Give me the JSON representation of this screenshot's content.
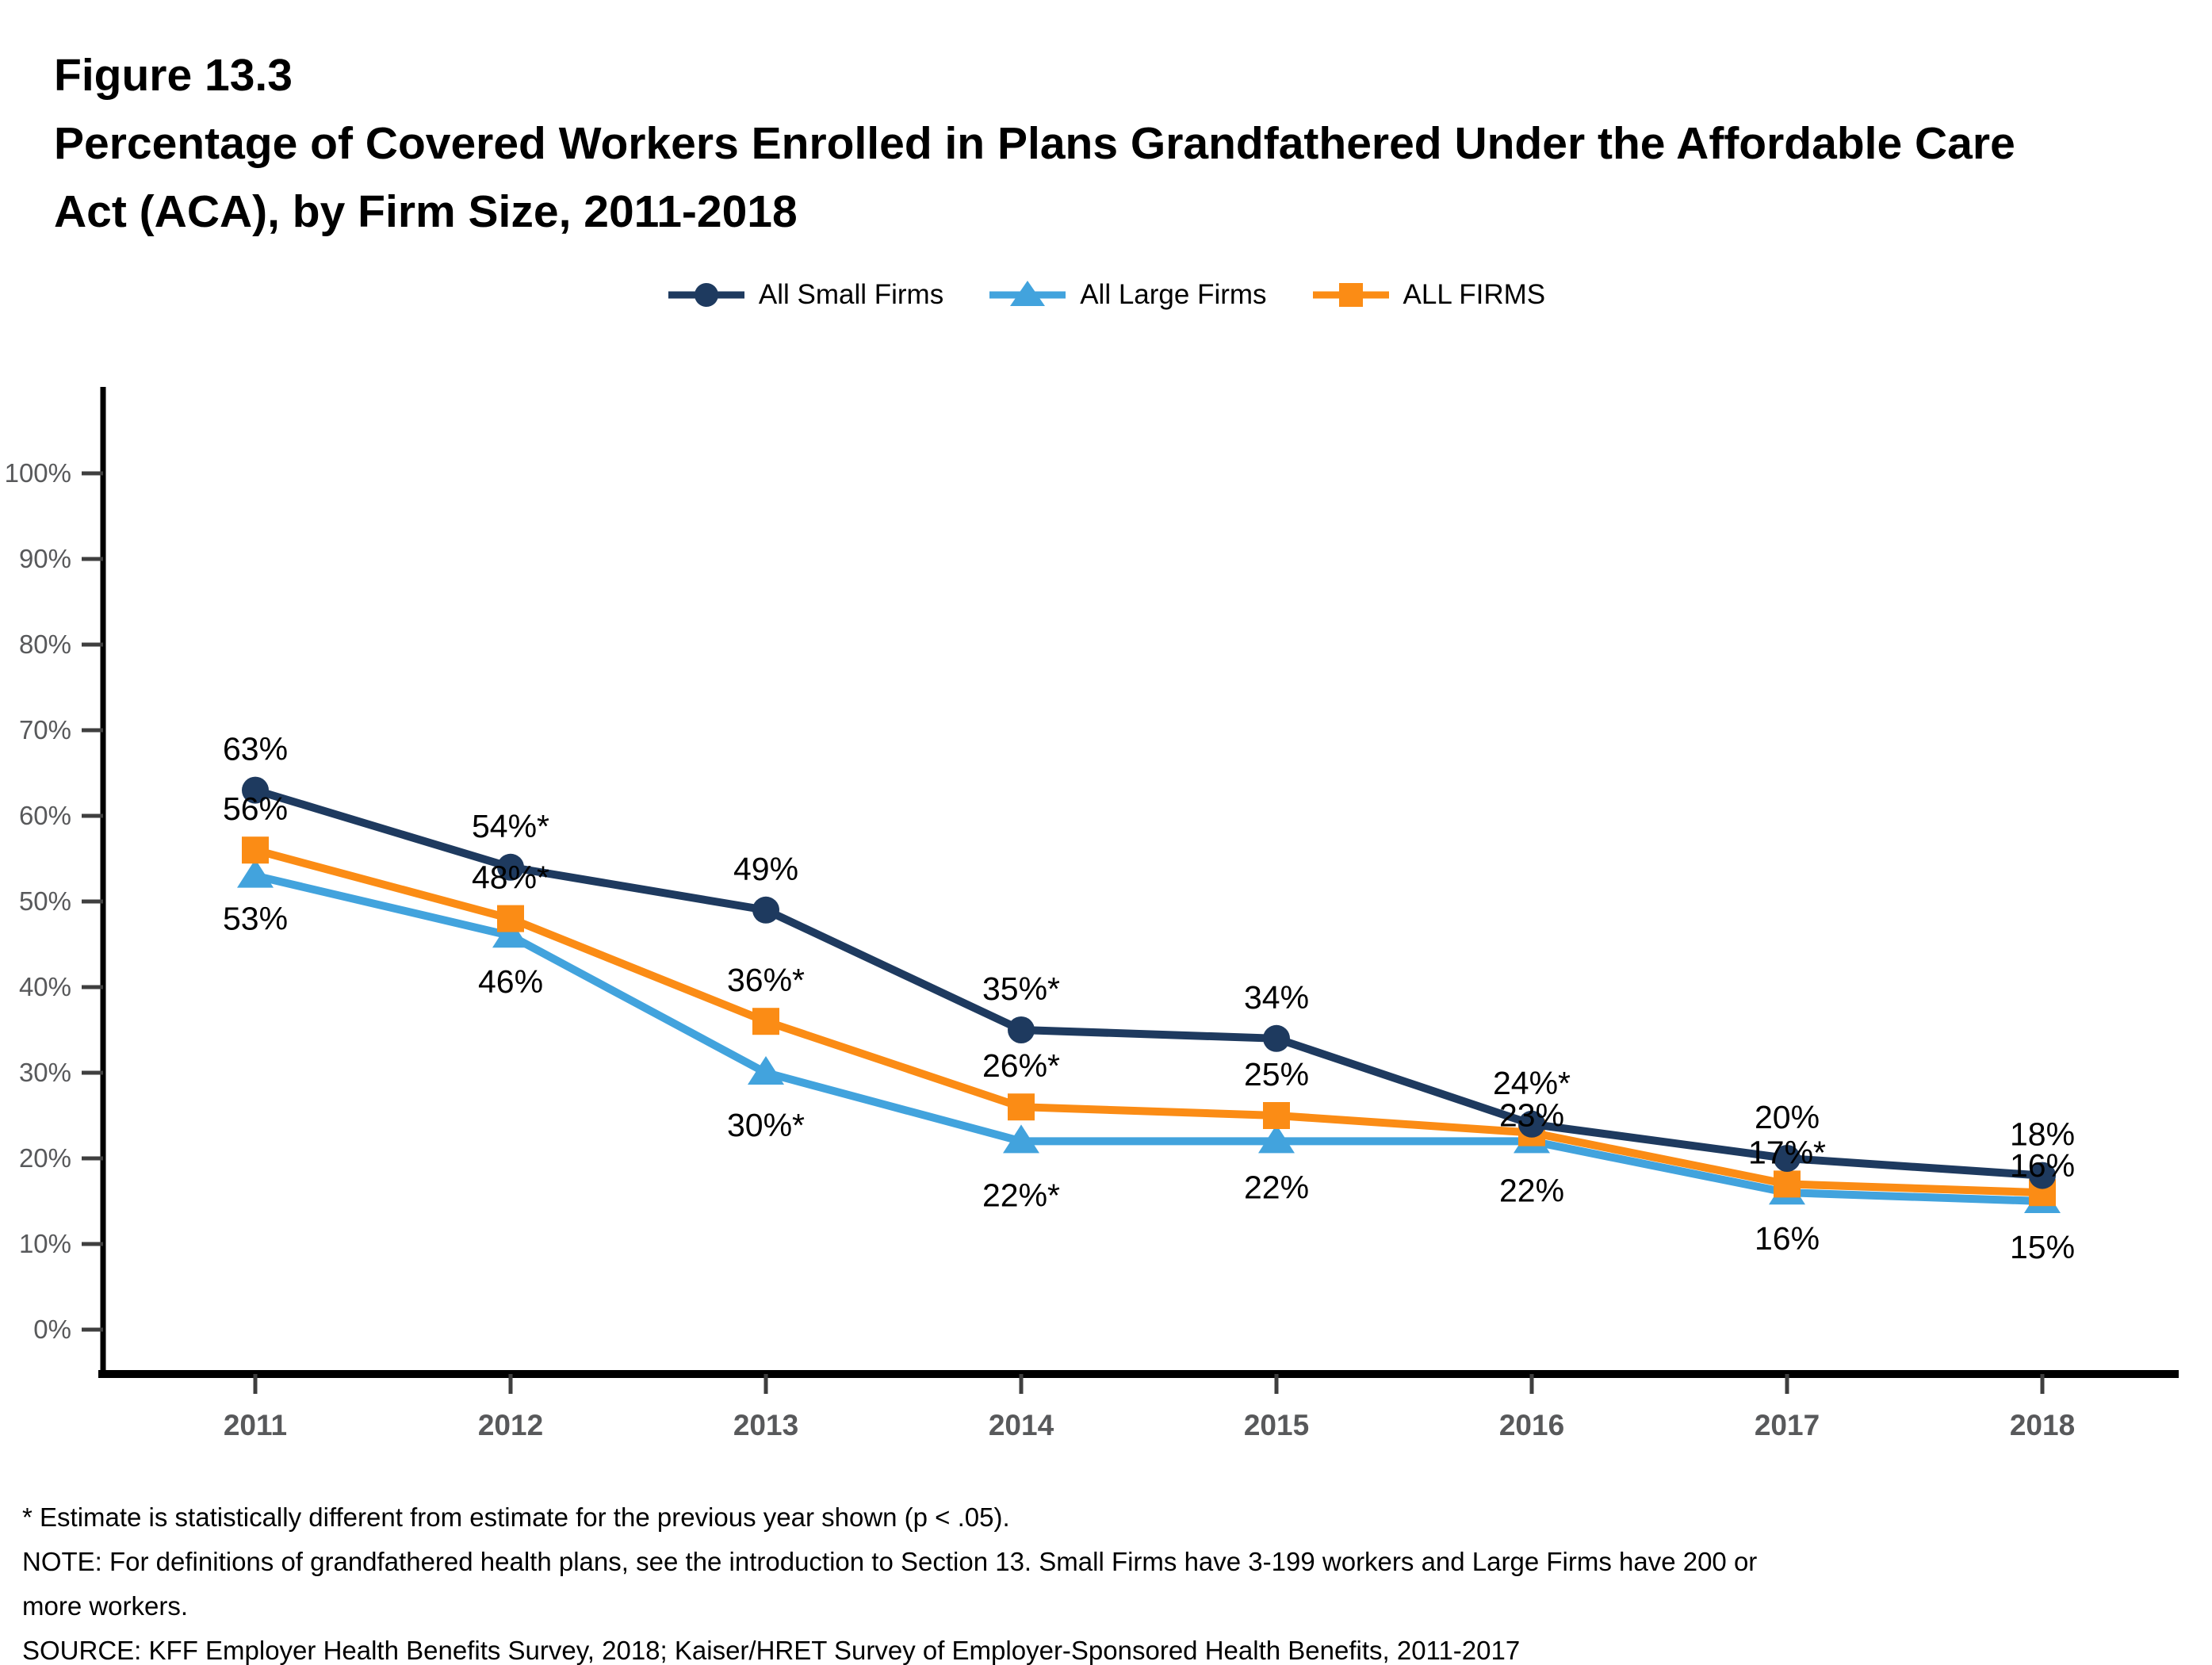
{
  "figure": {
    "label": "Figure 13.3",
    "title_line1": "Percentage of Covered Workers Enrolled in Plans Grandfathered Under the Affordable Care",
    "title_line2": "Act (ACA), by Firm Size, 2011-2018"
  },
  "legend": [
    {
      "id": "all-small-firms",
      "label": "All Small Firms",
      "marker": "circle",
      "color": "#1e3a5f"
    },
    {
      "id": "all-large-firms",
      "label": "All Large Firms",
      "marker": "triangle",
      "color": "#42a3dd"
    },
    {
      "id": "all-firms",
      "label": "ALL FIRMS",
      "marker": "square",
      "color": "#fb8c15"
    }
  ],
  "chart_data": {
    "type": "line",
    "title": "Percentage of Covered Workers Enrolled in Plans Grandfathered Under the Affordable Care Act (ACA), by Firm Size, 2011-2018",
    "x_labels": [
      "2011",
      "2012",
      "2013",
      "2014",
      "2015",
      "2016",
      "2017",
      "2018"
    ],
    "y_axis": {
      "min": 0,
      "max": 100,
      "tick_step": 10,
      "tick_labels": [
        "0%",
        "10%",
        "20%",
        "30%",
        "40%",
        "50%",
        "60%",
        "70%",
        "80%",
        "90%",
        "100%"
      ]
    },
    "grid": false,
    "legend_position": "top",
    "series": [
      {
        "name": "All Small Firms",
        "color": "#1e3a5f",
        "marker": "circle",
        "draw_order": 3,
        "label_side": "above",
        "values": [
          63,
          54,
          49,
          35,
          34,
          24,
          20,
          18
        ],
        "point_labels": [
          "63%",
          "54%*",
          "49%",
          "35%*",
          "34%",
          "24%*",
          "20%",
          "18%"
        ],
        "label_dy": [
          0,
          0,
          0,
          0,
          0,
          0,
          0,
          0
        ]
      },
      {
        "name": "ALL FIRMS",
        "color": "#fb8c15",
        "marker": "square",
        "draw_order": 2,
        "label_side": "above",
        "values": [
          56,
          48,
          36,
          26,
          25,
          23,
          17,
          16
        ],
        "point_labels": [
          "56%",
          "48%*",
          "36%*",
          "26%*",
          "25%",
          "23%",
          "17%*",
          "16%"
        ],
        "label_dy": [
          0,
          0,
          0,
          0,
          0,
          30,
          12,
          18
        ]
      },
      {
        "name": "All Large Firms",
        "color": "#42a3dd",
        "marker": "triangle",
        "draw_order": 1,
        "label_side": "below",
        "values": [
          53,
          46,
          30,
          22,
          22,
          22,
          16,
          15
        ],
        "point_labels": [
          "53%",
          "46%",
          "30%*",
          "22%*",
          "22%",
          "22%",
          "16%",
          "15%"
        ],
        "label_dy": [
          -4,
          0,
          8,
          10,
          0,
          4,
          0,
          0
        ]
      }
    ]
  },
  "colors": {
    "axis_line": "#000000",
    "tick_mark": "#3f3f3f",
    "tick_label": "#58595b",
    "data_label": "#000000"
  },
  "footnotes": [
    "* Estimate is statistically different from estimate for the previous year shown (p < .05).",
    "NOTE: For definitions of grandfathered health plans, see the introduction to Section 13. Small Firms have 3-199 workers and Large Firms have 200 or",
    "more workers.",
    "SOURCE: KFF Employer Health Benefits Survey, 2018; Kaiser/HRET Survey of Employer-Sponsored Health Benefits, 2011-2017"
  ]
}
